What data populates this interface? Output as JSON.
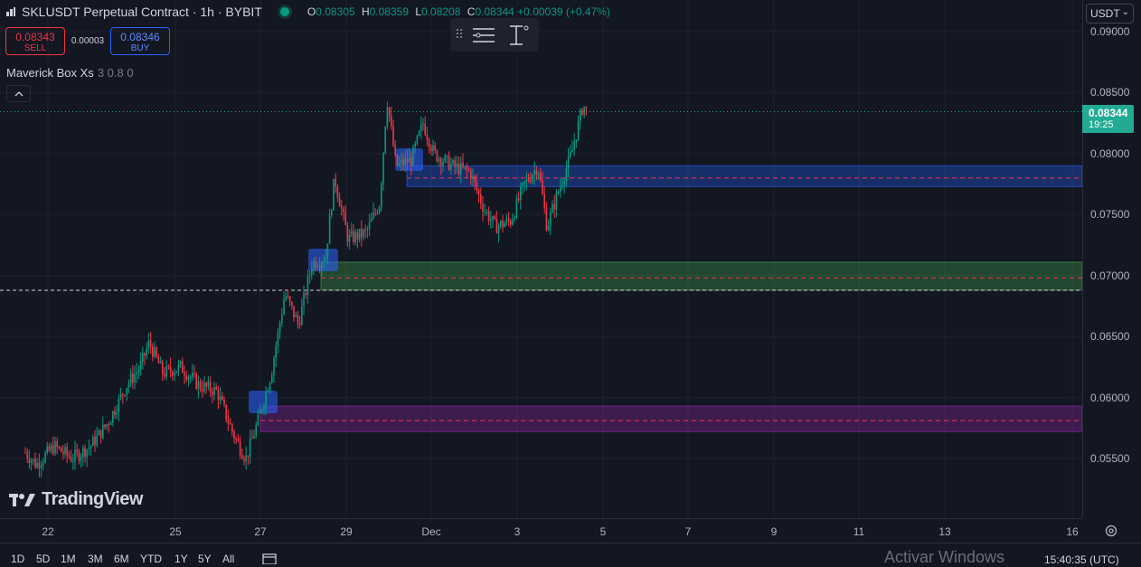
{
  "header": {
    "symbol_title": "SKLUSDT Perpetual Contract · 1h · BYBIT",
    "ohlc": [
      {
        "key": "O",
        "value": "0.08305"
      },
      {
        "key": "H",
        "value": "0.08359"
      },
      {
        "key": "L",
        "value": "0.08208"
      },
      {
        "key": "C",
        "value": "0.08344"
      }
    ],
    "change": "+0.00039 (+0.47%)",
    "colors": {
      "up": "#089981",
      "down": "#f23645"
    }
  },
  "trade": {
    "sell_price": "0.08343",
    "sell_label": "SELL",
    "spread": "0.00003",
    "buy_price": "0.08346",
    "buy_label": "BUY"
  },
  "indicator": {
    "name": "Maverick Box Xs",
    "params": "3 0.8 0"
  },
  "watermark": "TradingView",
  "currency_select": "USDT",
  "last_price": {
    "value": "0.08344",
    "countdown": "19:25"
  },
  "icons": [
    "drag-grip-icon",
    "lines-settings-icon",
    "cursor-text-icon",
    "chevron-up-icon",
    "gear-icon",
    "calendar-icon"
  ],
  "chart_data": {
    "type": "candlestick",
    "y_ticks": [
      "0.09000",
      "0.08500",
      "0.08000",
      "0.07500",
      "0.07000",
      "0.06500",
      "0.06000",
      "0.05500"
    ],
    "x_ticks": [
      "22",
      "25",
      "27",
      "29",
      "Dec",
      "3",
      "5",
      "7",
      "9",
      "11",
      "13",
      "16"
    ],
    "zones": [
      {
        "color": "#2962ff",
        "low": 0.0773,
        "high": 0.079
      },
      {
        "color": "#4caf50",
        "low": 0.0688,
        "high": 0.0711
      },
      {
        "color": "#9c27b0",
        "low": 0.0572,
        "high": 0.0593
      }
    ],
    "last_close": 0.08344
  },
  "bottom": {
    "ranges": [
      "1D",
      "5D",
      "1M",
      "3M",
      "6M",
      "YTD",
      "1Y",
      "5Y",
      "All"
    ],
    "activate_text": "Activar Windows",
    "clock": "15:40:35 (UTC)"
  }
}
